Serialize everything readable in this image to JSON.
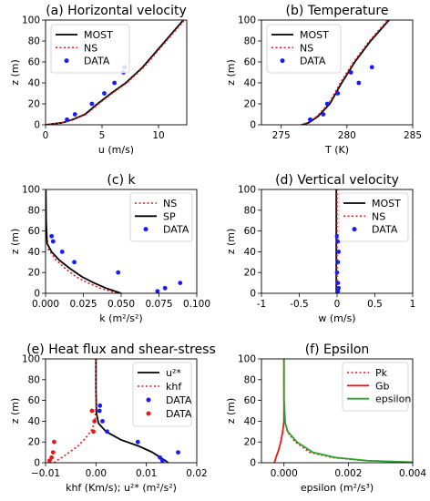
{
  "chart_data": [
    {
      "type": "line",
      "title": "(a) Horizontal velocity",
      "xlabel": "u (m/s)",
      "ylabel": "z (m)",
      "xlim": [
        0,
        12.5
      ],
      "ylim": [
        0,
        100
      ],
      "xticks": [
        0,
        5,
        10
      ],
      "yticks": [
        0,
        20,
        40,
        60,
        80,
        100
      ],
      "legend_position": "top-left",
      "series": [
        {
          "name": "MOST",
          "style": "solid",
          "color": "#000000",
          "x": [
            0.0,
            1.5,
            2.4,
            3.5,
            4.6,
            5.8,
            7.1,
            8.6,
            10.2,
            12.2
          ],
          "y": [
            0,
            2,
            5,
            10,
            20,
            30,
            40,
            55,
            75,
            100
          ]
        },
        {
          "name": "NS",
          "style": "dotted",
          "color": "#e41a1c",
          "x": [
            0.0,
            1.5,
            2.5,
            3.6,
            4.7,
            5.9,
            7.2,
            8.7,
            10.3,
            12.3
          ],
          "y": [
            0,
            2,
            5,
            10,
            20,
            30,
            40,
            55,
            75,
            100
          ]
        },
        {
          "name": "DATA",
          "style": "points",
          "color": "#1a1aff",
          "x": [
            1.9,
            2.6,
            4.1,
            5.2,
            6.1,
            6.9,
            7.0
          ],
          "y": [
            5,
            10,
            20,
            30,
            40,
            50,
            55
          ]
        }
      ]
    },
    {
      "type": "line",
      "title": "(b) Temperature",
      "xlabel": "T (K)",
      "ylabel": "z (m)",
      "xlim": [
        273.5,
        285
      ],
      "ylim": [
        0,
        100
      ],
      "xticks": [
        275,
        280,
        285
      ],
      "yticks": [
        0,
        20,
        40,
        60,
        80,
        100
      ],
      "legend_position": "top-left",
      "series": [
        {
          "name": "MOST",
          "style": "solid",
          "color": "#000000",
          "x": [
            276.6,
            277.1,
            277.8,
            278.7,
            279.6,
            280.6,
            281.8,
            283.2
          ],
          "y": [
            0,
            2,
            8,
            20,
            40,
            60,
            80,
            100
          ]
        },
        {
          "name": "NS",
          "style": "dotted",
          "color": "#e41a1c",
          "x": [
            276.5,
            277.0,
            277.7,
            278.6,
            279.5,
            280.5,
            281.7,
            283.1
          ],
          "y": [
            0,
            2,
            8,
            20,
            40,
            60,
            80,
            100
          ]
        },
        {
          "name": "DATA",
          "style": "points",
          "color": "#1a1aff",
          "x": [
            277.2,
            278.2,
            278.5,
            279.3,
            280.3,
            280.9,
            281.9
          ],
          "y": [
            5,
            10,
            20,
            30,
            50,
            40,
            55
          ]
        }
      ]
    },
    {
      "type": "line",
      "title": "(c) k",
      "xlabel": "k (m²/s²)",
      "ylabel": "z (m)",
      "xlim": [
        0.0,
        0.1
      ],
      "ylim": [
        0,
        100
      ],
      "xticks": [
        0.0,
        0.025,
        0.05,
        0.075,
        0.1
      ],
      "xtick_labels": [
        "0.000",
        "0.025",
        "0.050",
        "0.075",
        "0.100"
      ],
      "yticks": [
        0,
        20,
        40,
        60,
        80,
        100
      ],
      "legend_position": "top-right",
      "series": [
        {
          "name": "NS",
          "style": "dotted",
          "color": "#e41a1c",
          "x": [
            0.047,
            0.043,
            0.036,
            0.028,
            0.02,
            0.013,
            0.007,
            0.002,
            0.0003,
            0.0001
          ],
          "y": [
            0,
            2,
            5,
            10,
            16,
            24,
            32,
            42,
            60,
            100
          ]
        },
        {
          "name": "SP",
          "style": "solid",
          "color": "#000000",
          "x": [
            0.05,
            0.046,
            0.04,
            0.032,
            0.024,
            0.016,
            0.009,
            0.004,
            0.001,
            0.0004,
            0.0002
          ],
          "y": [
            0,
            2,
            5,
            10,
            16,
            24,
            32,
            40,
            48,
            70,
            100
          ]
        },
        {
          "name": "DATA",
          "style": "points",
          "color": "#1a1aff",
          "x": [
            0.004,
            0.005,
            0.011,
            0.019,
            0.048,
            0.074,
            0.079,
            0.089
          ],
          "y": [
            55,
            50,
            40,
            30,
            20,
            2,
            5,
            10
          ]
        }
      ]
    },
    {
      "type": "line",
      "title": "(d) Vertical velocity",
      "xlabel": "w (m/s)",
      "ylabel": "z (m)",
      "xlim": [
        -1.0,
        1.0
      ],
      "ylim": [
        0,
        100
      ],
      "xticks": [
        -1.0,
        -0.5,
        0.0,
        0.5,
        1.0
      ],
      "yticks": [
        0,
        20,
        40,
        60,
        80,
        100
      ],
      "legend_position": "top-right",
      "series": [
        {
          "name": "MOST",
          "style": "solid",
          "color": "#000000",
          "x": [
            -0.01,
            -0.01
          ],
          "y": [
            0,
            100
          ]
        },
        {
          "name": "NS",
          "style": "dotted",
          "color": "#e41a1c",
          "x": [
            0.0,
            0.0
          ],
          "y": [
            0,
            100
          ]
        },
        {
          "name": "DATA",
          "style": "points",
          "color": "#1a1aff",
          "x": [
            0.01,
            0.02,
            0.01,
            0.0,
            0.01,
            0.02,
            0.01,
            0.0
          ],
          "y": [
            2,
            5,
            10,
            20,
            30,
            40,
            50,
            55
          ]
        }
      ]
    },
    {
      "type": "line",
      "title": "(e) Heat flux and shear-stress",
      "xlabel": "khf (Km/s);  u²* (m²/s²)",
      "ylabel": "z (m)",
      "xlim": [
        -0.01,
        0.02
      ],
      "ylim": [
        0,
        100
      ],
      "xticks": [
        -0.01,
        0.0,
        0.01,
        0.02
      ],
      "xtick_labels": [
        "−0.01",
        "0.00",
        "0.01",
        "0.02"
      ],
      "yticks": [
        0,
        20,
        40,
        60,
        80,
        100
      ],
      "legend_position": "top-right",
      "series": [
        {
          "name": "u²*",
          "style": "solid",
          "color": "#000000",
          "x": [
            0.0143,
            0.0138,
            0.0128,
            0.0112,
            0.0085,
            0.005,
            0.002,
            0.0005,
            0.0001,
            0.0,
            0.0
          ],
          "y": [
            0,
            2,
            5,
            10,
            16,
            22,
            30,
            38,
            48,
            70,
            100
          ]
        },
        {
          "name": "khf",
          "style": "dotted",
          "color": "#e41a1c",
          "x": [
            -0.0083,
            -0.0078,
            -0.0068,
            -0.0053,
            -0.0036,
            -0.002,
            -0.0008,
            -0.0002,
            0.0,
            0.0
          ],
          "y": [
            0,
            2,
            5,
            10,
            16,
            24,
            32,
            40,
            55,
            100
          ]
        },
        {
          "name": "DATA",
          "style": "points",
          "color": "#1a1aff",
          "x": [
            0.0008,
            0.0007,
            0.0013,
            0.0022,
            0.0083,
            0.0127,
            0.0132,
            0.0163
          ],
          "y": [
            55,
            50,
            40,
            30,
            20,
            5,
            2,
            10
          ]
        },
        {
          "name": "DATA",
          "style": "points",
          "color": "#e41a1c",
          "x": [
            -0.0092,
            -0.0088,
            -0.0085,
            -0.0083,
            -0.0005,
            -0.0003,
            -0.0008
          ],
          "y": [
            2,
            5,
            10,
            20,
            30,
            40,
            50
          ]
        }
      ]
    },
    {
      "type": "line",
      "title": "(f) Epsilon",
      "xlabel": "epsilon (m²/s³)",
      "ylabel": "z (m)",
      "xlim": [
        -0.0007,
        0.004
      ],
      "ylim": [
        0,
        100
      ],
      "xticks": [
        0.0,
        0.002,
        0.004
      ],
      "xtick_labels": [
        "0.000",
        "0.002",
        "0.004"
      ],
      "yticks": [
        0,
        20,
        40,
        60,
        80,
        100
      ],
      "legend_position": "top-right",
      "series": [
        {
          "name": "Pk",
          "style": "dotted",
          "color": "#e41a1c",
          "x": [
            0.004,
            0.0025,
            0.0015,
            0.0008,
            0.00035,
            0.0001,
            3e-05,
            0.0,
            0.0
          ],
          "y": [
            0.5,
            2,
            5,
            10,
            20,
            30,
            40,
            60,
            100
          ]
        },
        {
          "name": "Gb",
          "style": "solid",
          "color": "#e41a1c",
          "x": [
            -0.0003,
            -0.00025,
            -0.00017,
            -0.0001,
            -4e-05,
            0.0,
            0.0
          ],
          "y": [
            0,
            5,
            12,
            20,
            30,
            40,
            100
          ]
        },
        {
          "name": "epsilon",
          "style": "solid",
          "color": "#2ca02c",
          "x": [
            0.004,
            0.0026,
            0.0016,
            0.0009,
            0.0004,
            0.00012,
            4e-05,
            0.0,
            0.0
          ],
          "y": [
            0.5,
            2,
            5,
            10,
            20,
            30,
            38,
            60,
            100
          ]
        }
      ]
    }
  ]
}
